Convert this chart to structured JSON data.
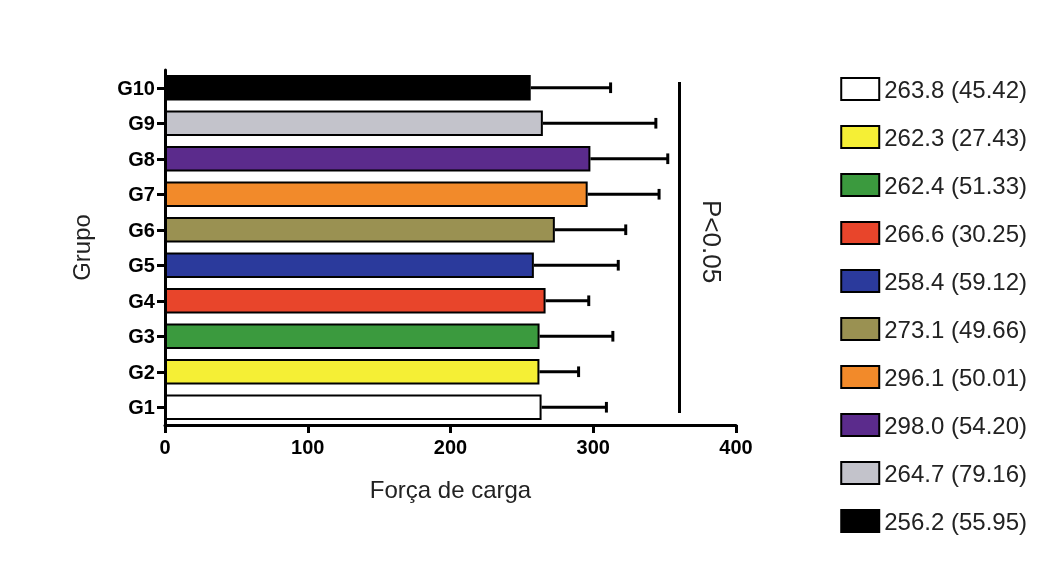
{
  "chart_data": {
    "type": "bar",
    "orientation": "horizontal",
    "categories": [
      "G10",
      "G9",
      "G8",
      "G7",
      "G6",
      "G5",
      "G4",
      "G3",
      "G2",
      "G1"
    ],
    "series": [
      {
        "name": "263.8 (45.42)",
        "color": "#ffffff",
        "values": [
          null,
          null,
          null,
          null,
          null,
          null,
          null,
          null,
          null,
          263.8
        ],
        "errors": [
          null,
          null,
          null,
          null,
          null,
          null,
          null,
          null,
          null,
          [
            263.8,
            309.22
          ]
        ]
      },
      {
        "name": "262.3 (27.43)",
        "color": "#f5ef35",
        "values": [
          null,
          null,
          null,
          null,
          null,
          null,
          null,
          null,
          262.3,
          null
        ],
        "errors": [
          null,
          null,
          null,
          null,
          null,
          null,
          null,
          null,
          [
            262.3,
            289.73
          ],
          null
        ]
      },
      {
        "name": "262.4 (51.33)",
        "color": "#3b9a3e",
        "values": [
          null,
          null,
          null,
          null,
          null,
          null,
          null,
          262.4,
          null,
          null
        ],
        "errors": [
          null,
          null,
          null,
          null,
          null,
          null,
          null,
          [
            262.4,
            313.73
          ],
          null,
          null
        ]
      },
      {
        "name": "266.6 (30.25)",
        "color": "#e8452b",
        "values": [
          null,
          null,
          null,
          null,
          null,
          null,
          266.6,
          null,
          null,
          null
        ],
        "errors": [
          null,
          null,
          null,
          null,
          null,
          null,
          [
            266.6,
            296.85
          ],
          null,
          null,
          null
        ]
      },
      {
        "name": "258.4 (59.12)",
        "color": "#2b3a9c",
        "values": [
          null,
          null,
          null,
          null,
          null,
          258.4,
          null,
          null,
          null,
          null
        ],
        "errors": [
          null,
          null,
          null,
          null,
          null,
          [
            258.4,
            317.52
          ],
          null,
          null,
          null,
          null
        ]
      },
      {
        "name": "273.1 (49.66)",
        "color": "#9a9152",
        "values": [
          null,
          null,
          null,
          null,
          273.1,
          null,
          null,
          null,
          null,
          null
        ],
        "errors": [
          null,
          null,
          null,
          null,
          [
            273.1,
            322.76
          ],
          null,
          null,
          null,
          null,
          null
        ]
      },
      {
        "name": "296.1 (50.01)",
        "color": "#f28a2a",
        "values": [
          null,
          null,
          null,
          296.1,
          null,
          null,
          null,
          null,
          null,
          null
        ],
        "errors": [
          null,
          null,
          null,
          [
            296.1,
            346.11
          ],
          null,
          null,
          null,
          null,
          null,
          null
        ]
      },
      {
        "name": "298.0 (54.20)",
        "color": "#5b2b8c",
        "values": [
          null,
          null,
          298.0,
          null,
          null,
          null,
          null,
          null,
          null,
          null
        ],
        "errors": [
          null,
          null,
          [
            298.0,
            352.2
          ],
          null,
          null,
          null,
          null,
          null,
          null,
          null
        ]
      },
      {
        "name": "264.7 (79.16)",
        "color": "#c3c3cb",
        "values": [
          null,
          264.7,
          null,
          null,
          null,
          null,
          null,
          null,
          null,
          null
        ],
        "errors": [
          null,
          [
            264.7,
            343.86
          ],
          null,
          null,
          null,
          null,
          null,
          null,
          null,
          null
        ]
      },
      {
        "name": "256.2 (55.95)",
        "color": "#000000",
        "values": [
          256.2,
          null,
          null,
          null,
          null,
          null,
          null,
          null,
          null,
          null
        ],
        "errors": [
          [
            256.2,
            312.15
          ],
          null,
          null,
          null,
          null,
          null,
          null,
          null,
          null,
          null
        ]
      }
    ],
    "xlabel": "Força de carga",
    "ylabel": "Grupo",
    "xlim": [
      0,
      400
    ],
    "xticks": [
      0,
      100,
      200,
      300,
      400
    ],
    "annotations": [
      "P<0.05"
    ],
    "grid": false,
    "legend": "right"
  }
}
